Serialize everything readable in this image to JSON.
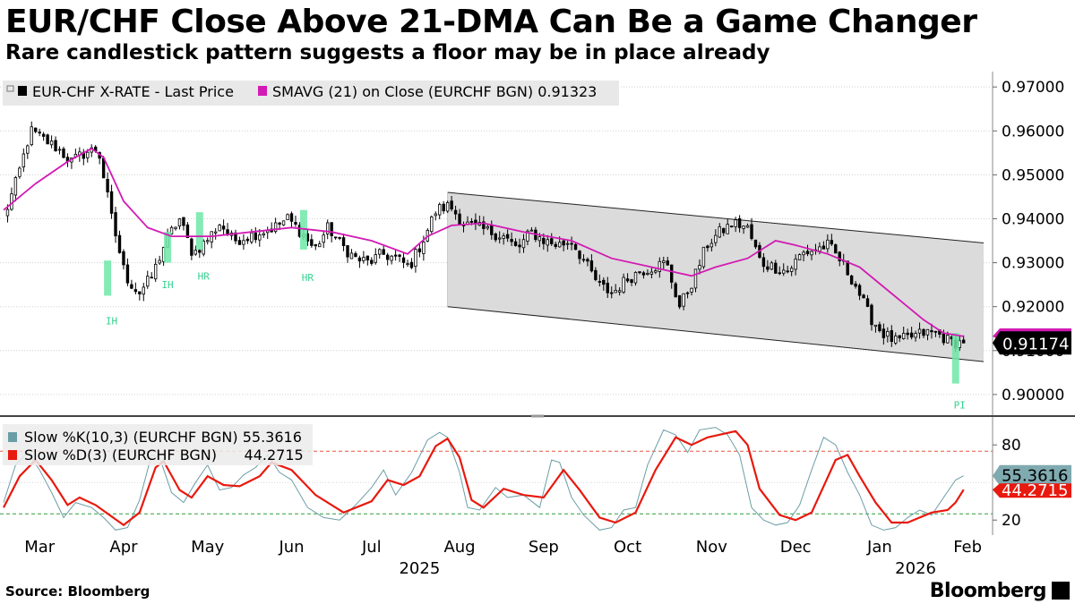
{
  "title": "EUR/CHF Close Above 21-DMA Can Be a Game Changer",
  "subtitle": "Rare candlestick pattern suggests a floor may be in place already",
  "source": "Source: Bloomberg",
  "brand": "Bloomberg",
  "colors": {
    "candle": "#000000",
    "sma": "#d21ab4",
    "channel_fill": "#d9d9d9",
    "highlight": "#6ee7a8",
    "pattern_label": "#35d08f",
    "stoch_k": "#6a9ea6",
    "stoch_d": "#e8190e",
    "overbought_line": "#e8553e",
    "oversold_line": "#2e9e3a"
  },
  "chart_data": [
    {
      "type": "candlestick",
      "title": "EUR/CHF Close Above 21-DMA Can Be a Game Changer",
      "legend": [
        {
          "label": "EUR-CHF X-RATE - Last Price",
          "color": "#000000"
        },
        {
          "label": "SMAVG (21)  on Close (EURCHF BGN) 0.91323",
          "color": "#d21ab4"
        }
      ],
      "ylim": [
        0.8955,
        0.9735
      ],
      "y_ticks": [
        0.9,
        0.91,
        0.92,
        0.93,
        0.94,
        0.95,
        0.96,
        0.97
      ],
      "y_tick_labels": [
        "0.90000",
        "0.91000",
        "0.92000",
        "0.93000",
        "0.94000",
        "0.95000",
        "0.96000",
        "0.97000"
      ],
      "last_price_label": "0.91174",
      "last_price": 0.91174,
      "sma_last": 0.91323,
      "x_range_days": [
        0,
        245
      ],
      "weekly_closes": [
        0.94,
        0.949,
        0.96,
        0.958,
        0.956,
        0.953,
        0.955,
        0.956,
        0.94,
        0.927,
        0.923,
        0.927,
        0.935,
        0.94,
        0.932,
        0.935,
        0.939,
        0.935,
        0.936,
        0.937,
        0.938,
        0.94,
        0.937,
        0.933,
        0.938,
        0.934,
        0.931,
        0.93,
        0.932,
        0.931,
        0.929,
        0.935,
        0.942,
        0.943,
        0.939,
        0.938,
        0.937,
        0.936,
        0.933,
        0.937,
        0.935,
        0.934,
        0.935,
        0.93,
        0.925,
        0.923,
        0.926,
        0.928,
        0.929,
        0.93,
        0.92,
        0.926,
        0.934,
        0.937,
        0.939,
        0.938,
        0.93,
        0.929,
        0.928,
        0.932,
        0.933,
        0.934,
        0.93,
        0.925,
        0.918,
        0.914,
        0.912,
        0.913,
        0.914,
        0.914,
        0.912,
        0.9117
      ],
      "sma_points": [
        [
          0,
          0.942
        ],
        [
          8,
          0.948
        ],
        [
          16,
          0.953
        ],
        [
          22,
          0.956
        ],
        [
          25,
          0.954
        ],
        [
          30,
          0.944
        ],
        [
          36,
          0.938
        ],
        [
          42,
          0.936
        ],
        [
          52,
          0.936
        ],
        [
          62,
          0.937
        ],
        [
          72,
          0.938
        ],
        [
          82,
          0.937
        ],
        [
          92,
          0.935
        ],
        [
          101,
          0.932
        ],
        [
          106,
          0.936
        ],
        [
          112,
          0.9385
        ],
        [
          120,
          0.939
        ],
        [
          130,
          0.937
        ],
        [
          142,
          0.935
        ],
        [
          152,
          0.931
        ],
        [
          162,
          0.929
        ],
        [
          172,
          0.927
        ],
        [
          178,
          0.929
        ],
        [
          186,
          0.931
        ],
        [
          193,
          0.935
        ],
        [
          198,
          0.934
        ],
        [
          206,
          0.932
        ],
        [
          214,
          0.929
        ],
        [
          222,
          0.923
        ],
        [
          230,
          0.917
        ],
        [
          235,
          0.914
        ],
        [
          240,
          0.91323
        ]
      ],
      "channel": {
        "upper": [
          [
            111,
            0.946
          ],
          [
            245,
            0.9345
          ]
        ],
        "lower": [
          [
            111,
            0.92
          ],
          [
            245,
            0.9075
          ]
        ]
      },
      "highlight_candles": [
        {
          "day": 26,
          "low": 0.9225,
          "high": 0.9305
        },
        {
          "day": 41,
          "low": 0.93,
          "high": 0.937
        },
        {
          "day": 49,
          "low": 0.933,
          "high": 0.9415
        },
        {
          "day": 75,
          "low": 0.933,
          "high": 0.942
        },
        {
          "day": 238,
          "low": 0.9025,
          "high": 0.914
        }
      ],
      "pattern_labels": [
        {
          "text": "IH",
          "day": 27,
          "value": 0.916
        },
        {
          "text": "IH",
          "day": 41,
          "value": 0.9242
        },
        {
          "text": "HR",
          "day": 50,
          "value": 0.9262
        },
        {
          "text": "HR",
          "day": 76,
          "value": 0.9258
        },
        {
          "text": "PI",
          "day": 239,
          "value": 0.8968
        }
      ]
    },
    {
      "type": "line",
      "legend": [
        {
          "label": "Slow %K(10,3) (EURCHF BGN) 55.3616",
          "color": "#6a9ea6"
        },
        {
          "label": "Slow %D(3) (EURCHF BGN)      44.2715",
          "color": "#e8190e"
        }
      ],
      "ylim": [
        8,
        98
      ],
      "y_ticks": [
        20,
        80
      ],
      "y_tick_labels": [
        "20",
        "80"
      ],
      "reference_lines": [
        25,
        75
      ],
      "k_last_label": "55.3616",
      "d_last_label": "44.2715",
      "k_last": 55.3616,
      "d_last": 44.2715,
      "d_points": [
        [
          0,
          30
        ],
        [
          4,
          55
        ],
        [
          8,
          68
        ],
        [
          12,
          52
        ],
        [
          16,
          32
        ],
        [
          19,
          38
        ],
        [
          23,
          32
        ],
        [
          30,
          16
        ],
        [
          34,
          26
        ],
        [
          38,
          62
        ],
        [
          40,
          67
        ],
        [
          44,
          44
        ],
        [
          47,
          38
        ],
        [
          51,
          55
        ],
        [
          55,
          48
        ],
        [
          59,
          47
        ],
        [
          64,
          55
        ],
        [
          67,
          66
        ],
        [
          72,
          60
        ],
        [
          78,
          40
        ],
        [
          85,
          26
        ],
        [
          92,
          35
        ],
        [
          96,
          52
        ],
        [
          100,
          48
        ],
        [
          104,
          55
        ],
        [
          108,
          79
        ],
        [
          111,
          85
        ],
        [
          114,
          70
        ],
        [
          117,
          36
        ],
        [
          120,
          30
        ],
        [
          125,
          45
        ],
        [
          130,
          40
        ],
        [
          135,
          38
        ],
        [
          140,
          60
        ],
        [
          144,
          44
        ],
        [
          149,
          22
        ],
        [
          153,
          18
        ],
        [
          158,
          26
        ],
        [
          163,
          60
        ],
        [
          168,
          86
        ],
        [
          172,
          80
        ],
        [
          176,
          86
        ],
        [
          183,
          91
        ],
        [
          186,
          80
        ],
        [
          189,
          45
        ],
        [
          194,
          24
        ],
        [
          198,
          20
        ],
        [
          202,
          26
        ],
        [
          208,
          68
        ],
        [
          211,
          72
        ],
        [
          214,
          55
        ],
        [
          218,
          34
        ],
        [
          222,
          18
        ],
        [
          226,
          18
        ],
        [
          229,
          22
        ],
        [
          232,
          26
        ],
        [
          236,
          28
        ],
        [
          238,
          34
        ],
        [
          240,
          44.27
        ]
      ],
      "k_points": [
        [
          0,
          34
        ],
        [
          3,
          64
        ],
        [
          6,
          74
        ],
        [
          9,
          60
        ],
        [
          12,
          42
        ],
        [
          15,
          22
        ],
        [
          18,
          34
        ],
        [
          22,
          30
        ],
        [
          25,
          22
        ],
        [
          28,
          12
        ],
        [
          31,
          14
        ],
        [
          34,
          36
        ],
        [
          37,
          72
        ],
        [
          39,
          70
        ],
        [
          42,
          42
        ],
        [
          45,
          34
        ],
        [
          48,
          50
        ],
        [
          51,
          64
        ],
        [
          54,
          44
        ],
        [
          57,
          46
        ],
        [
          60,
          56
        ],
        [
          63,
          62
        ],
        [
          66,
          72
        ],
        [
          69,
          58
        ],
        [
          72,
          52
        ],
        [
          76,
          30
        ],
        [
          80,
          22
        ],
        [
          84,
          20
        ],
        [
          88,
          32
        ],
        [
          92,
          46
        ],
        [
          95,
          60
        ],
        [
          98,
          40
        ],
        [
          102,
          58
        ],
        [
          106,
          84
        ],
        [
          109,
          90
        ],
        [
          111,
          86
        ],
        [
          114,
          58
        ],
        [
          116,
          30
        ],
        [
          119,
          28
        ],
        [
          123,
          46
        ],
        [
          126,
          38
        ],
        [
          130,
          40
        ],
        [
          134,
          30
        ],
        [
          137,
          68
        ],
        [
          139,
          66
        ],
        [
          142,
          38
        ],
        [
          145,
          24
        ],
        [
          149,
          12
        ],
        [
          152,
          14
        ],
        [
          155,
          28
        ],
        [
          158,
          30
        ],
        [
          161,
          64
        ],
        [
          165,
          92
        ],
        [
          168,
          88
        ],
        [
          171,
          74
        ],
        [
          174,
          92
        ],
        [
          178,
          94
        ],
        [
          181,
          88
        ],
        [
          184,
          72
        ],
        [
          187,
          30
        ],
        [
          190,
          20
        ],
        [
          193,
          16
        ],
        [
          196,
          18
        ],
        [
          199,
          32
        ],
        [
          202,
          60
        ],
        [
          205,
          86
        ],
        [
          208,
          80
        ],
        [
          211,
          58
        ],
        [
          214,
          40
        ],
        [
          217,
          16
        ],
        [
          220,
          12
        ],
        [
          223,
          14
        ],
        [
          226,
          22
        ],
        [
          229,
          28
        ],
        [
          232,
          24
        ],
        [
          235,
          38
        ],
        [
          238,
          52
        ],
        [
          240,
          55.36
        ]
      ]
    }
  ],
  "x_axis": {
    "months": [
      {
        "label": "Mar",
        "day": 9
      },
      {
        "label": "Apr",
        "day": 30
      },
      {
        "label": "May",
        "day": 51
      },
      {
        "label": "Jun",
        "day": 72
      },
      {
        "label": "Jul",
        "day": 92
      },
      {
        "label": "Aug",
        "day": 114
      },
      {
        "label": "Sep",
        "day": 135
      },
      {
        "label": "Oct",
        "day": 156
      },
      {
        "label": "Nov",
        "day": 177
      },
      {
        "label": "Dec",
        "day": 198
      },
      {
        "label": "Jan",
        "day": 219
      },
      {
        "label": "Feb",
        "day": 241
      }
    ],
    "years": [
      {
        "label": "2025",
        "day": 104
      },
      {
        "label": "2026",
        "day": 228
      }
    ]
  }
}
